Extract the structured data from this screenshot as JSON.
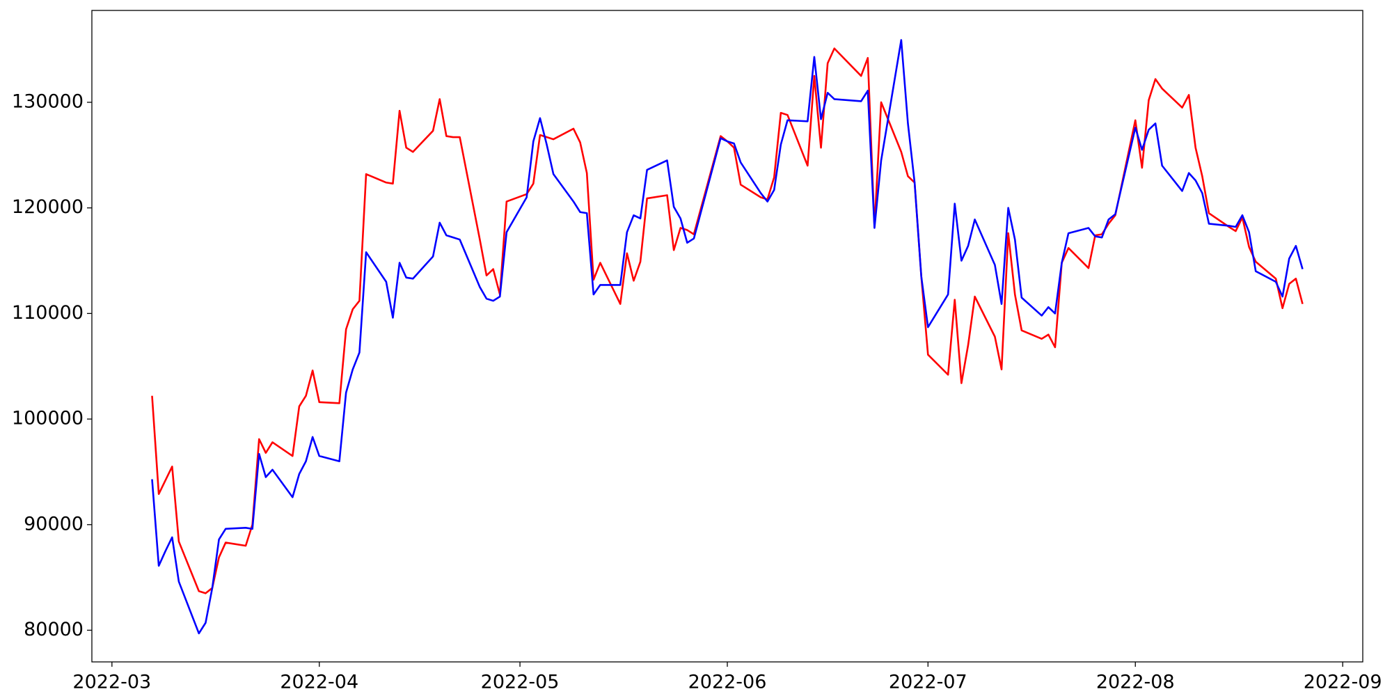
{
  "chart_data": {
    "type": "line",
    "x": [
      "2022-03-07",
      "2022-03-08",
      "2022-03-09",
      "2022-03-10",
      "2022-03-11",
      "2022-03-14",
      "2022-03-15",
      "2022-03-16",
      "2022-03-17",
      "2022-03-18",
      "2022-03-21",
      "2022-03-22",
      "2022-03-23",
      "2022-03-24",
      "2022-03-25",
      "2022-03-28",
      "2022-03-29",
      "2022-03-30",
      "2022-03-31",
      "2022-04-01",
      "2022-04-04",
      "2022-04-05",
      "2022-04-06",
      "2022-04-07",
      "2022-04-08",
      "2022-04-11",
      "2022-04-12",
      "2022-04-13",
      "2022-04-14",
      "2022-04-15",
      "2022-04-18",
      "2022-04-19",
      "2022-04-20",
      "2022-04-21",
      "2022-04-22",
      "2022-04-25",
      "2022-04-26",
      "2022-04-27",
      "2022-04-28",
      "2022-04-29",
      "2022-05-02",
      "2022-05-03",
      "2022-05-04",
      "2022-05-05",
      "2022-05-06",
      "2022-05-09",
      "2022-05-10",
      "2022-05-11",
      "2022-05-12",
      "2022-05-13",
      "2022-05-16",
      "2022-05-17",
      "2022-05-18",
      "2022-05-19",
      "2022-05-20",
      "2022-05-23",
      "2022-05-24",
      "2022-05-25",
      "2022-05-26",
      "2022-05-27",
      "2022-05-31",
      "2022-06-01",
      "2022-06-02",
      "2022-06-03",
      "2022-06-06",
      "2022-06-07",
      "2022-06-08",
      "2022-06-09",
      "2022-06-10",
      "2022-06-13",
      "2022-06-14",
      "2022-06-15",
      "2022-06-16",
      "2022-06-17",
      "2022-06-21",
      "2022-06-22",
      "2022-06-23",
      "2022-06-24",
      "2022-06-27",
      "2022-06-28",
      "2022-06-29",
      "2022-06-30",
      "2022-07-01",
      "2022-07-04",
      "2022-07-05",
      "2022-07-06",
      "2022-07-07",
      "2022-07-08",
      "2022-07-11",
      "2022-07-12",
      "2022-07-13",
      "2022-07-14",
      "2022-07-15",
      "2022-07-18",
      "2022-07-19",
      "2022-07-20",
      "2022-07-21",
      "2022-07-22",
      "2022-07-25",
      "2022-07-26",
      "2022-07-27",
      "2022-07-28",
      "2022-07-29",
      "2022-08-01",
      "2022-08-02",
      "2022-08-03",
      "2022-08-04",
      "2022-08-05",
      "2022-08-08",
      "2022-08-09",
      "2022-08-10",
      "2022-08-11",
      "2022-08-12",
      "2022-08-15",
      "2022-08-16",
      "2022-08-17",
      "2022-08-18",
      "2022-08-19",
      "2022-08-22",
      "2022-08-23",
      "2022-08-24",
      "2022-08-25",
      "2022-08-26"
    ],
    "series": [
      {
        "color": "#ff0000",
        "values": [
          102200,
          92900,
          94200,
          95500,
          88400,
          83700,
          83500,
          84000,
          86900,
          88300,
          88000,
          90000,
          98100,
          96800,
          97800,
          96500,
          101200,
          102200,
          104600,
          101600,
          101500,
          108500,
          110400,
          111200,
          123200,
          122400,
          122300,
          129200,
          125700,
          125300,
          127300,
          130300,
          126800,
          126700,
          126700,
          117000,
          113600,
          114200,
          111800,
          120600,
          121300,
          122300,
          126900,
          126700,
          126500,
          127500,
          126200,
          123300,
          113200,
          114800,
          110900,
          115700,
          113100,
          114900,
          120900,
          121200,
          116000,
          118100,
          117900,
          117500,
          126800,
          126300,
          125700,
          122200,
          121000,
          120800,
          122900,
          129000,
          128800,
          124000,
          132500,
          125700,
          133700,
          135100,
          132500,
          134200,
          118200,
          130000,
          125300,
          123000,
          122400,
          113500,
          106100,
          104200,
          111300,
          103400,
          107000,
          111600,
          107800,
          104700,
          117600,
          111800,
          108400,
          107600,
          108000,
          106800,
          114800,
          116200,
          114300,
          117400,
          117500,
          118500,
          119300,
          128300,
          123800,
          130200,
          132200,
          131300,
          129500,
          130700,
          125700,
          123000,
          119500,
          118200,
          117800,
          119100,
          116300,
          114900,
          113300,
          110500,
          112800,
          113300,
          110900
        ]
      },
      {
        "color": "#0000ff",
        "values": [
          94300,
          86100,
          87500,
          88800,
          84600,
          79700,
          80700,
          84000,
          88600,
          89600,
          89700,
          89600,
          96700,
          94500,
          95200,
          92600,
          94800,
          96000,
          98300,
          96500,
          96000,
          102500,
          104700,
          106300,
          115800,
          113000,
          109600,
          114800,
          113400,
          113300,
          115400,
          118600,
          117400,
          117200,
          117000,
          112500,
          111400,
          111200,
          111600,
          117700,
          121000,
          126300,
          128500,
          126000,
          123200,
          120600,
          119600,
          119500,
          111800,
          112700,
          112700,
          117700,
          119300,
          119000,
          123600,
          124500,
          120100,
          119000,
          116700,
          117100,
          126600,
          126300,
          126100,
          124300,
          121400,
          120600,
          121700,
          126000,
          128300,
          128200,
          134300,
          128400,
          130900,
          130300,
          130100,
          131100,
          118100,
          124500,
          135900,
          128000,
          122400,
          113500,
          108700,
          111800,
          120400,
          115000,
          116400,
          118900,
          114600,
          110900,
          120000,
          117000,
          111500,
          109800,
          110600,
          110000,
          114800,
          117600,
          118100,
          117300,
          117200,
          118900,
          119400,
          127600,
          125500,
          127400,
          128000,
          124000,
          121600,
          123300,
          122600,
          121400,
          118500,
          118300,
          118200,
          119300,
          117700,
          114000,
          113000,
          111600,
          115200,
          116400,
          114200
        ]
      }
    ],
    "xlim": [
      "2022-02-26",
      "2022-09-04"
    ],
    "xticks": [
      {
        "value": "2022-03-01",
        "label": "2022-03"
      },
      {
        "value": "2022-04-01",
        "label": "2022-04"
      },
      {
        "value": "2022-05-01",
        "label": "2022-05"
      },
      {
        "value": "2022-06-01",
        "label": "2022-06"
      },
      {
        "value": "2022-07-01",
        "label": "2022-07"
      },
      {
        "value": "2022-08-01",
        "label": "2022-08"
      },
      {
        "value": "2022-09-01",
        "label": "2022-09"
      }
    ],
    "ylim": [
      77000,
      138700
    ],
    "yticks": [
      80000,
      90000,
      100000,
      110000,
      120000,
      130000
    ],
    "grid": false
  }
}
